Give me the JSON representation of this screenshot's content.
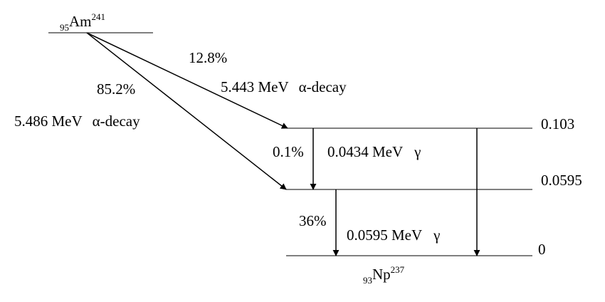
{
  "parent": {
    "mass_number_prefix": "95",
    "symbol": "Am",
    "superscript": "241"
  },
  "daughter": {
    "mass_number_prefix": "93",
    "symbol": "Np",
    "superscript": "237"
  },
  "levels": [
    {
      "energy_label": "0.103"
    },
    {
      "energy_label": "0.0595"
    },
    {
      "energy_label": "0"
    }
  ],
  "alpha_decays": [
    {
      "percent": "12.8%",
      "energy": "5.443 MeV",
      "type": "α-decay"
    },
    {
      "percent": "85.2%",
      "energy": "5.486 MeV",
      "type": "α-decay"
    }
  ],
  "gamma_transitions": [
    {
      "percent": "0.1%",
      "energy": "0.0434 MeV",
      "type": "γ"
    },
    {
      "percent": "36%",
      "energy": "0.0595 MeV",
      "type": "γ"
    }
  ]
}
